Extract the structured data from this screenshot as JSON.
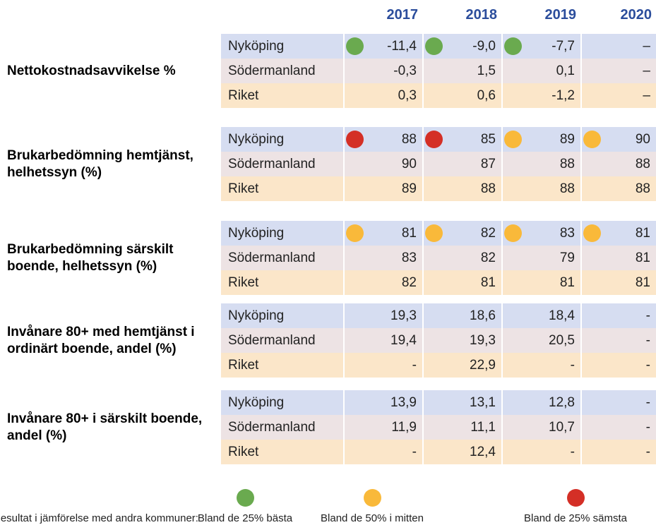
{
  "years": [
    "2017",
    "2018",
    "2019",
    "2020"
  ],
  "groups": [
    {
      "label": "Nettokostnadsavvikelse %",
      "rows": [
        {
          "name": "Nyköping",
          "cells": [
            {
              "text": "-11,4",
              "dot": "#6aaa4f"
            },
            {
              "text": "-9,0",
              "dot": "#6aaa4f"
            },
            {
              "text": "-7,7",
              "dot": "#6aaa4f"
            },
            {
              "text": "–"
            }
          ]
        },
        {
          "name": "Södermanland",
          "cells": [
            {
              "text": "-0,3"
            },
            {
              "text": "1,5"
            },
            {
              "text": "0,1"
            },
            {
              "text": "–"
            }
          ]
        },
        {
          "name": "Riket",
          "cells": [
            {
              "text": "0,3"
            },
            {
              "text": "0,6"
            },
            {
              "text": "-1,2"
            },
            {
              "text": "–"
            }
          ]
        }
      ]
    },
    {
      "label": "Brukarbedömning hemtjänst, helhetssyn (%)",
      "rows": [
        {
          "name": "Nyköping",
          "cells": [
            {
              "text": "88",
              "dot": "#d42f26"
            },
            {
              "text": "85",
              "dot": "#d42f26"
            },
            {
              "text": "89",
              "dot": "#f9b93a"
            },
            {
              "text": "90",
              "dot": "#f9b93a"
            }
          ]
        },
        {
          "name": "Södermanland",
          "cells": [
            {
              "text": "90"
            },
            {
              "text": "87"
            },
            {
              "text": "88"
            },
            {
              "text": "88"
            }
          ]
        },
        {
          "name": "Riket",
          "cells": [
            {
              "text": "89"
            },
            {
              "text": "88"
            },
            {
              "text": "88"
            },
            {
              "text": "88"
            }
          ]
        }
      ]
    },
    {
      "label": "Brukarbedömning särskilt boende, helhetssyn (%)",
      "rows": [
        {
          "name": "Nyköping",
          "cells": [
            {
              "text": "81",
              "dot": "#f9b93a"
            },
            {
              "text": "82",
              "dot": "#f9b93a"
            },
            {
              "text": "83",
              "dot": "#f9b93a"
            },
            {
              "text": "81",
              "dot": "#f9b93a"
            }
          ]
        },
        {
          "name": "Södermanland",
          "cells": [
            {
              "text": "83"
            },
            {
              "text": "82"
            },
            {
              "text": "79"
            },
            {
              "text": "81"
            }
          ]
        },
        {
          "name": "Riket",
          "cells": [
            {
              "text": "82"
            },
            {
              "text": "81"
            },
            {
              "text": "81"
            },
            {
              "text": "81"
            }
          ]
        }
      ]
    },
    {
      "label": "Invånare 80+ med hemtjänst i ordinärt boende, andel (%)",
      "rows": [
        {
          "name": "Nyköping",
          "cells": [
            {
              "text": "19,3"
            },
            {
              "text": "18,6"
            },
            {
              "text": "18,4"
            },
            {
              "text": "-"
            }
          ]
        },
        {
          "name": "Södermanland",
          "cells": [
            {
              "text": "19,4"
            },
            {
              "text": "19,3"
            },
            {
              "text": "20,5"
            },
            {
              "text": "-"
            }
          ]
        },
        {
          "name": "Riket",
          "cells": [
            {
              "text": "-"
            },
            {
              "text": "22,9"
            },
            {
              "text": "-"
            },
            {
              "text": "-"
            }
          ]
        }
      ]
    },
    {
      "label": "Invånare 80+ i särskilt boende, andel (%)",
      "rows": [
        {
          "name": "Nyköping",
          "cells": [
            {
              "text": "13,9"
            },
            {
              "text": "13,1"
            },
            {
              "text": "12,8"
            },
            {
              "text": "-"
            }
          ]
        },
        {
          "name": "Södermanland",
          "cells": [
            {
              "text": "11,9"
            },
            {
              "text": "11,1"
            },
            {
              "text": "10,7"
            },
            {
              "text": "-"
            }
          ]
        },
        {
          "name": "Riket",
          "cells": [
            {
              "text": "-"
            },
            {
              "text": "12,4"
            },
            {
              "text": "-"
            },
            {
              "text": "-"
            }
          ]
        }
      ]
    }
  ],
  "legend": {
    "title": "Resultat i jämförelse med andra kommuner:",
    "items": [
      {
        "label": "Bland de 25% bästa",
        "color": "#6aaa4f"
      },
      {
        "label": "Bland de 50% i mitten",
        "color": "#f9b93a"
      },
      {
        "label": "Bland de 25% sämsta",
        "color": "#d42f26"
      }
    ]
  }
}
